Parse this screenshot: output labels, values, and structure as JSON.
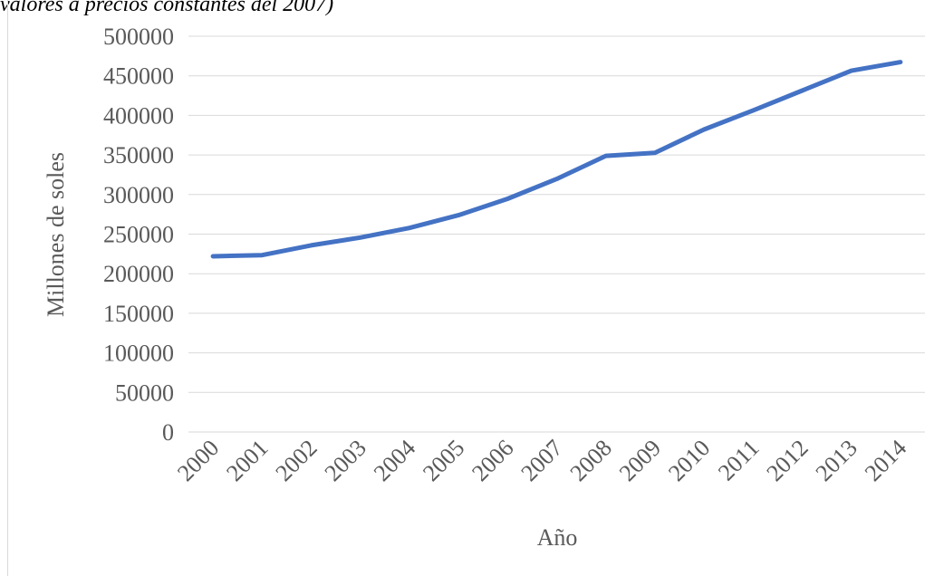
{
  "caption": "valores a precios constantes del 2007)",
  "chart_data": {
    "type": "line",
    "title": "",
    "xlabel": "Año",
    "ylabel": "Millones de soles",
    "ylim": [
      0,
      500000
    ],
    "y_ticks": [
      "0",
      "50000",
      "100000",
      "150000",
      "200000",
      "250000",
      "300000",
      "350000",
      "400000",
      "450000",
      "500000"
    ],
    "categories": [
      "2000",
      "2001",
      "2002",
      "2003",
      "2004",
      "2005",
      "2006",
      "2007",
      "2008",
      "2009",
      "2010",
      "2011",
      "2012",
      "2013",
      "2014"
    ],
    "series": [
      {
        "values": [
          222000,
          223500,
          235800,
          245600,
          257800,
          273900,
          294600,
          319700,
          348900,
          352700,
          382100,
          406300,
          431300,
          456400,
          467300
        ],
        "color": "#4472c4"
      }
    ],
    "grid": true,
    "legend": "none"
  }
}
